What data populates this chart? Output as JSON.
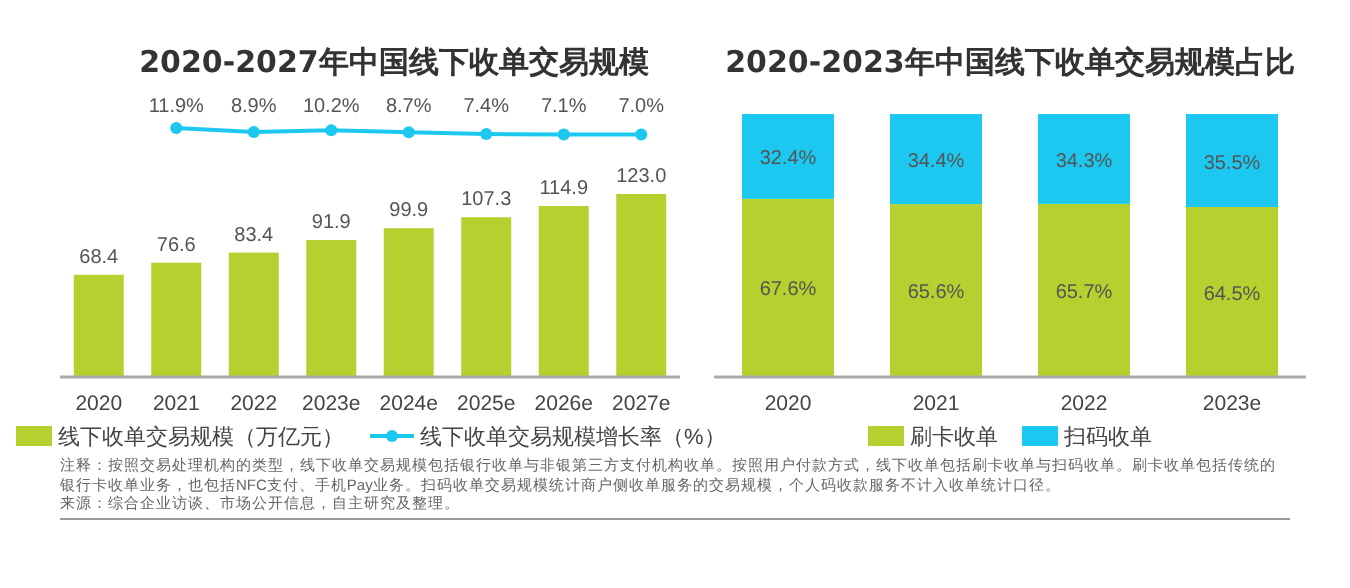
{
  "chart_data": [
    {
      "type": "bar",
      "categories": [
        "2020",
        "2021",
        "2022",
        "2023e",
        "2024e",
        "2025e",
        "2026e",
        "2027e"
      ],
      "legend": "bottom",
      "series": [
        {
          "name": "线下收单交易规模（万亿元）",
          "color": "#b5d130",
          "values": [
            68.4,
            76.6,
            83.4,
            91.9,
            99.9,
            107.3,
            114.9,
            123.0
          ],
          "value_labels": [
            "68.4",
            "76.6",
            "83.4",
            "91.9",
            "99.9",
            "107.3",
            "114.9",
            "123.0"
          ]
        }
      ],
      "annotations": [
        "注释：按照交易处理机构的类型，线下收单交易规模包括银行收单与非银第三方支付机构收单。按照用户付款方式，线下收单包括刷卡收单与扫码收单。刷卡收单包括传统的银行卡收单业务，也包括NFC支付、手机Pay业务。扫码收单交易规模统计商户侧收单服务的交易规模，个人码收款服务不计入收单统计口径。",
        "来源：综合企业访谈、市场公开信息，自主研究及整理。"
      ]
    },
    {
      "type": "line",
      "title": "2020-2027年中国线下收单交易规模",
      "categories": [
        null,
        null,
        null,
        null,
        null,
        null,
        null
      ],
      "legend": "bottom",
      "marker": "circle",
      "series": [
        {
          "name": "线下收单交易规模增长率（%）",
          "color": "#1cc8f0",
          "values": [
            11.9,
            8.9,
            10.2,
            8.7,
            7.4,
            7.1,
            7.0
          ],
          "value_labels": [
            "11.9%",
            "8.9%",
            "10.2%",
            "8.7%",
            "7.4%",
            "7.1%",
            "7.0%"
          ]
        }
      ]
    },
    {
      "type": "bar",
      "stacked": true,
      "title": "2020-2023年中国线下收单交易规模占比",
      "categories": [
        "2020",
        "2021",
        "2022",
        "2023e"
      ],
      "legend": "bottom",
      "series": [
        {
          "name": "刷卡收单",
          "color": "#b5d130",
          "values": [
            67.6,
            65.6,
            65.7,
            64.5
          ],
          "value_labels": [
            "67.6%",
            "65.6%",
            "65.7%",
            "64.5%"
          ]
        },
        {
          "name": "扫码收单",
          "color": "#1cc8f0",
          "values": [
            32.4,
            34.4,
            34.3,
            35.5
          ],
          "value_labels": [
            "32.4%",
            "34.4%",
            "34.3%",
            "35.5%"
          ]
        }
      ]
    }
  ]
}
